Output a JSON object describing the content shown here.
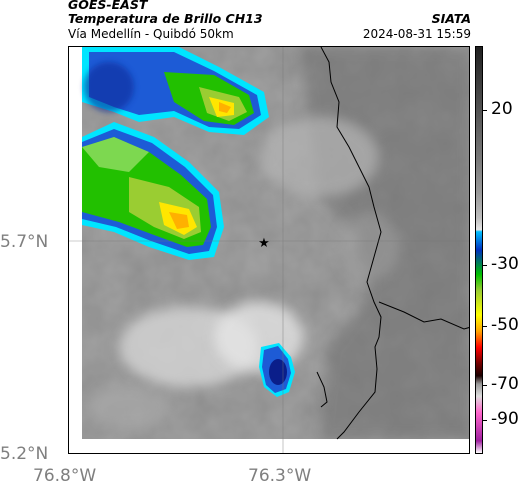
{
  "header": {
    "satellite": "GOES-EAST",
    "product": "Temperatura de Brillo CH13",
    "route": "Vía Medellín - Quibdó 50km",
    "org": "SIATA",
    "timestamp": "2024-08-31 15:59"
  },
  "axes": {
    "lat_ticks": [
      "5.7°N",
      "5.2°N"
    ],
    "lon_ticks": [
      "76.8°W",
      "76.3°W"
    ]
  },
  "colorbar": {
    "labels": [
      "20",
      "-30",
      "-50",
      "-70",
      "-90"
    ],
    "unit_levels_celsius": [
      20,
      -30,
      -50,
      -70,
      -90
    ]
  },
  "map": {
    "marker": "star",
    "colors": {
      "background_gray": "#8c8c8c",
      "cloud_cyan": "#00e5ff",
      "cloud_blue": "#0030c0",
      "cloud_green": "#22c000",
      "cloud_yellow": "#ffe600",
      "cloud_orange": "#ff8c00"
    }
  }
}
